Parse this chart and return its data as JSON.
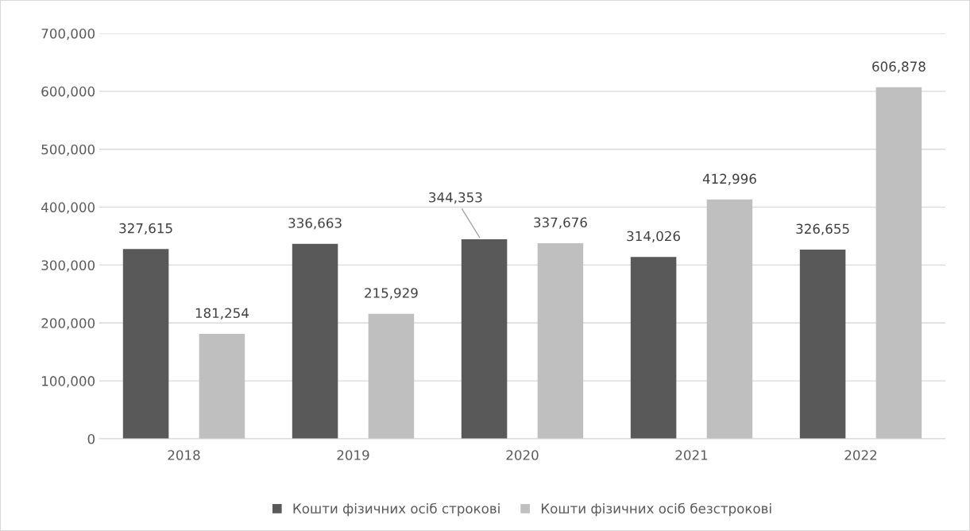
{
  "chart_data": {
    "type": "bar",
    "categories": [
      "2018",
      "2019",
      "2020",
      "2021",
      "2022"
    ],
    "series": [
      {
        "name": "Кошти фізичних осіб строкові",
        "color": "#595959",
        "values": [
          327615,
          336663,
          344353,
          314026,
          326655
        ],
        "value_labels": [
          "327,615",
          "336,663",
          "344,353",
          "314,026",
          "326,655"
        ]
      },
      {
        "name": "Кошти фізичних осіб безстрокові",
        "color": "#bfbfbf",
        "values": [
          181254,
          215929,
          337676,
          412996,
          606878
        ],
        "value_labels": [
          "181,254",
          "215,929",
          "337,676",
          "412,996",
          "606,878"
        ]
      }
    ],
    "ylim": [
      0,
      700000
    ],
    "yticks": [
      {
        "value": 0,
        "label": "0"
      },
      {
        "value": 100000,
        "label": "100,000"
      },
      {
        "value": 200000,
        "label": "200,000"
      },
      {
        "value": 300000,
        "label": "300,000"
      },
      {
        "value": 400000,
        "label": "400,000"
      },
      {
        "value": 500000,
        "label": "500,000"
      },
      {
        "value": 600000,
        "label": "600,000"
      },
      {
        "value": 700000,
        "label": "700,000"
      }
    ],
    "grid": "y",
    "legend": "bottom"
  }
}
